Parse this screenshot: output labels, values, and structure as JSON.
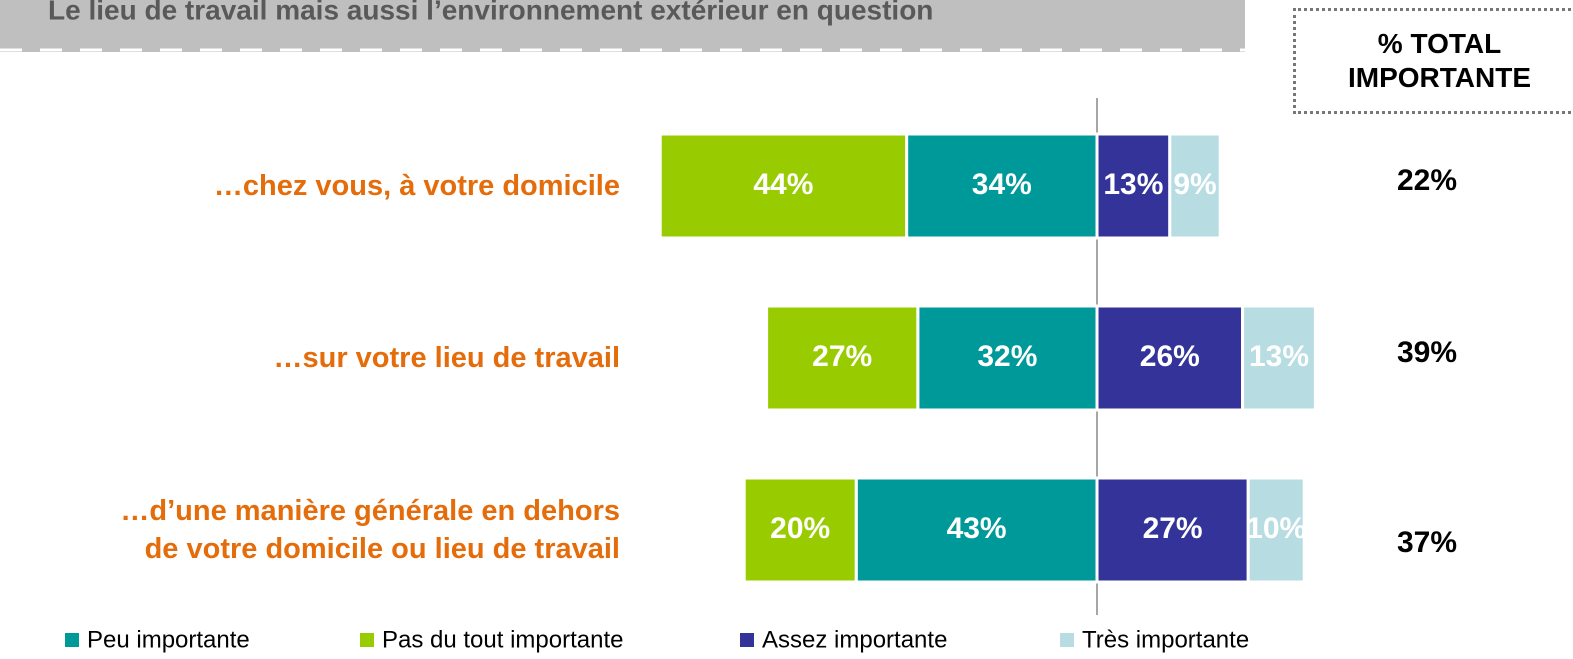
{
  "chart_data": {
    "type": "diverging_bar",
    "title": "Le lieu de travail mais aussi l’environnement extérieur en question",
    "categories": [
      "…chez vous, à votre domicile",
      "…sur votre lieu de travail",
      "…d’une manière générale en dehors\nde votre domicile ou lieu de travail"
    ],
    "series": [
      {
        "name": "Peu importante",
        "color": "#009999",
        "side": "left",
        "values": [
          34,
          32,
          43
        ],
        "value_labels": [
          "34%",
          "32%",
          "43%"
        ]
      },
      {
        "name": "Pas du tout importante",
        "color": "#99cc00",
        "side": "left",
        "values": [
          44,
          27,
          20
        ],
        "value_labels": [
          "44%",
          "27%",
          "20%"
        ]
      },
      {
        "name": "Assez importante",
        "color": "#333399",
        "side": "right",
        "values": [
          13,
          26,
          27
        ],
        "value_labels": [
          "13%",
          "26%",
          "27%"
        ]
      },
      {
        "name": "Très importante",
        "color": "#b7dde3",
        "side": "right",
        "values": [
          9,
          13,
          10
        ],
        "value_labels": [
          "9%",
          "13%",
          "10%"
        ]
      }
    ],
    "totals": {
      "header": "% TOTAL IMPORTANTE",
      "values": [
        22,
        39,
        37
      ],
      "value_labels": [
        "22%",
        "39%",
        "37%"
      ]
    }
  }
}
